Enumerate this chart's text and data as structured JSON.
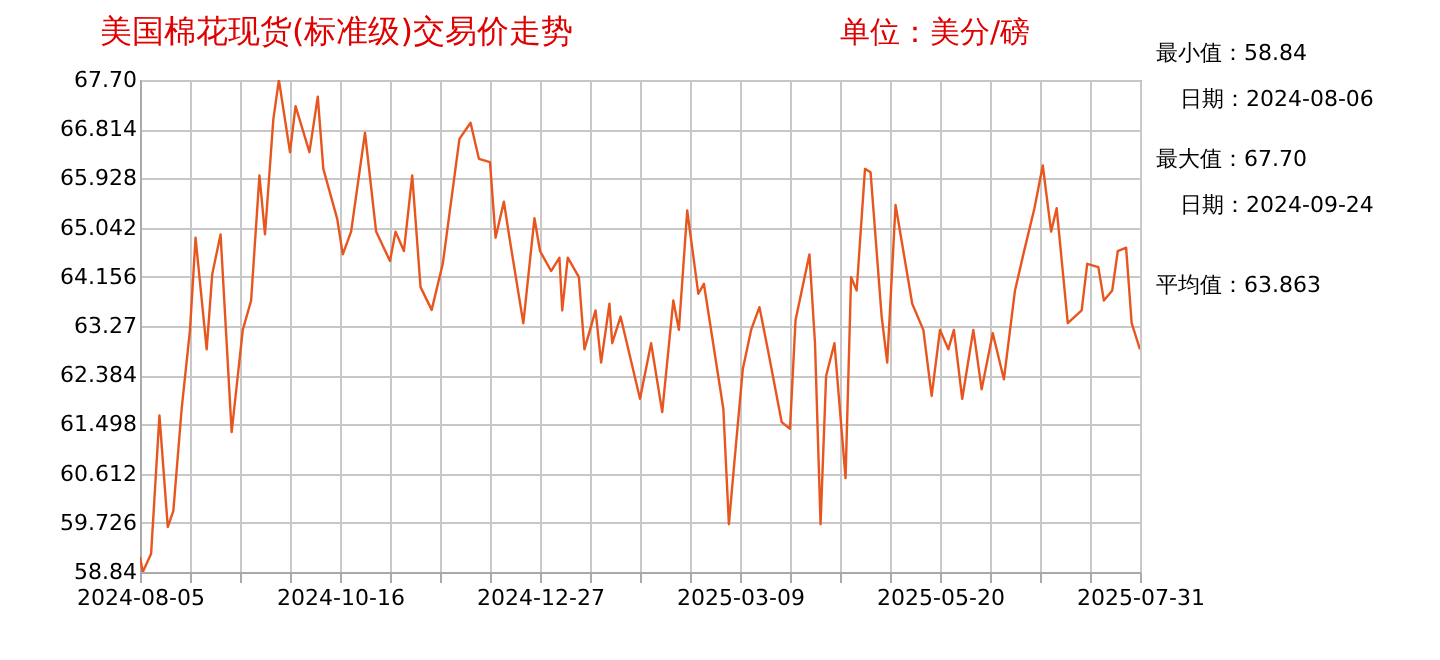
{
  "chart_data": {
    "type": "line",
    "title": "美国棉花现货(标准级)交易价走势",
    "subtitle": "单位：美分/磅",
    "x": [
      "2024-08-05",
      "2024-08-06",
      "2024-08-09",
      "2024-08-12",
      "2024-08-15",
      "2024-08-17",
      "2024-08-20",
      "2024-08-23",
      "2024-08-25",
      "2024-08-29",
      "2024-08-31",
      "2024-09-03",
      "2024-09-07",
      "2024-09-11",
      "2024-09-14",
      "2024-09-17",
      "2024-09-19",
      "2024-09-22",
      "2024-09-24",
      "2024-09-28",
      "2024-09-30",
      "2024-10-05",
      "2024-10-08",
      "2024-10-10",
      "2024-10-15",
      "2024-10-17",
      "2024-10-20",
      "2024-10-25",
      "2024-10-29",
      "2024-11-03",
      "2024-11-05",
      "2024-11-08",
      "2024-11-11",
      "2024-11-14",
      "2024-11-18",
      "2024-11-22",
      "2024-11-28",
      "2024-12-02",
      "2024-12-05",
      "2024-12-09",
      "2024-12-11",
      "2024-12-14",
      "2024-12-16",
      "2024-12-21",
      "2024-12-25",
      "2024-12-27",
      "2024-12-31",
      "2025-01-03",
      "2025-01-04",
      "2025-01-06",
      "2025-01-10",
      "2025-01-12",
      "2025-01-16",
      "2025-01-18",
      "2025-01-21",
      "2025-01-22",
      "2025-01-25",
      "2025-02-01",
      "2025-02-05",
      "2025-02-09",
      "2025-02-13",
      "2025-02-15",
      "2025-02-18",
      "2025-02-22",
      "2025-02-24",
      "2025-03-03",
      "2025-03-05",
      "2025-03-07",
      "2025-03-10",
      "2025-03-13",
      "2025-03-16",
      "2025-03-19",
      "2025-03-24",
      "2025-03-27",
      "2025-03-29",
      "2025-04-03",
      "2025-04-05",
      "2025-04-07",
      "2025-04-09",
      "2025-04-12",
      "2025-04-16",
      "2025-04-18",
      "2025-04-20",
      "2025-04-23",
      "2025-04-25",
      "2025-04-29",
      "2025-05-01",
      "2025-05-04",
      "2025-05-06",
      "2025-05-10",
      "2025-05-14",
      "2025-05-17",
      "2025-05-20",
      "2025-05-23",
      "2025-05-25",
      "2025-05-28",
      "2025-06-01",
      "2025-06-04",
      "2025-06-08",
      "2025-06-12",
      "2025-06-16",
      "2025-06-19",
      "2025-06-23",
      "2025-06-26",
      "2025-06-29",
      "2025-07-01",
      "2025-07-05",
      "2025-07-10",
      "2025-07-12",
      "2025-07-16",
      "2025-07-18",
      "2025-07-21",
      "2025-07-23",
      "2025-07-26",
      "2025-07-28",
      "2025-07-31"
    ],
    "series": [
      {
        "color": "#e8561f",
        "values": [
          59.11,
          58.84,
          59.17,
          61.66,
          59.65,
          59.94,
          61.78,
          63.2,
          64.86,
          62.85,
          64.2,
          64.92,
          61.36,
          63.2,
          63.73,
          65.98,
          64.92,
          66.99,
          67.7,
          66.4,
          67.23,
          66.4,
          67.4,
          66.1,
          65.2,
          64.56,
          64.97,
          66.75,
          64.97,
          64.44,
          64.97,
          64.62,
          65.98,
          63.97,
          63.56,
          64.39,
          66.64,
          66.93,
          66.28,
          66.22,
          64.86,
          65.51,
          64.86,
          63.32,
          65.21,
          64.62,
          64.26,
          64.5,
          63.55,
          64.5,
          64.15,
          62.85,
          63.55,
          62.61,
          63.67,
          62.96,
          63.44,
          61.96,
          62.96,
          61.72,
          63.73,
          63.2,
          65.35,
          63.85,
          64.03,
          61.78,
          59.7,
          60.83,
          62.49,
          63.2,
          63.61,
          62.85,
          61.54,
          61.42,
          63.38,
          64.56,
          62.96,
          59.7,
          62.37,
          62.96,
          60.53,
          64.15,
          63.91,
          66.1,
          66.04,
          63.44,
          62.61,
          65.45,
          64.86,
          63.67,
          63.2,
          62.01,
          63.2,
          62.85,
          63.2,
          61.96,
          63.2,
          62.13,
          63.14,
          62.31,
          63.91,
          64.56,
          65.39,
          66.16,
          64.97,
          65.39,
          63.32,
          63.55,
          64.39,
          64.33,
          63.73,
          63.91,
          64.62,
          64.68,
          63.32,
          62.85
        ]
      }
    ],
    "xlim": [
      "2024-08-05",
      "2025-07-31"
    ],
    "xticks": [
      {
        "value": "2024-08-05",
        "label": "2024-08-05"
      },
      {
        "value": "2024-08-23",
        "label": null
      },
      {
        "value": "2024-09-10",
        "label": null
      },
      {
        "value": "2024-09-28",
        "label": null
      },
      {
        "value": "2024-10-16",
        "label": "2024-10-16"
      },
      {
        "value": "2024-11-03",
        "label": null
      },
      {
        "value": "2024-11-21",
        "label": null
      },
      {
        "value": "2024-12-09",
        "label": null
      },
      {
        "value": "2024-12-27",
        "label": "2024-12-27"
      },
      {
        "value": "2025-01-14",
        "label": null
      },
      {
        "value": "2025-02-01",
        "label": null
      },
      {
        "value": "2025-02-19",
        "label": null
      },
      {
        "value": "2025-03-09",
        "label": "2025-03-09"
      },
      {
        "value": "2025-03-27",
        "label": null
      },
      {
        "value": "2025-04-14",
        "label": null
      },
      {
        "value": "2025-05-02",
        "label": null
      },
      {
        "value": "2025-05-20",
        "label": "2025-05-20"
      },
      {
        "value": "2025-06-07",
        "label": null
      },
      {
        "value": "2025-06-25",
        "label": null
      },
      {
        "value": "2025-07-13",
        "label": null
      },
      {
        "value": "2025-07-31",
        "label": "2025-07-31"
      }
    ],
    "ylim": [
      58.84,
      67.7
    ],
    "yticks": [
      {
        "value": 58.84,
        "label": "58.84"
      },
      {
        "value": 59.726,
        "label": "59.726"
      },
      {
        "value": 60.612,
        "label": "60.612"
      },
      {
        "value": 61.498,
        "label": "61.498"
      },
      {
        "value": 62.384,
        "label": "62.384"
      },
      {
        "value": 63.27,
        "label": "63.27"
      },
      {
        "value": 64.156,
        "label": "64.156"
      },
      {
        "value": 65.042,
        "label": "65.042"
      },
      {
        "value": 65.928,
        "label": "65.928"
      },
      {
        "value": 66.814,
        "label": "66.814"
      },
      {
        "value": 67.7,
        "label": "67.70"
      }
    ],
    "grid": true,
    "annotations": [
      "最小值：58.84",
      "日期：2024-08-06",
      "最大值：67.70",
      "日期：2024-09-24",
      "平均值：63.863"
    ]
  }
}
